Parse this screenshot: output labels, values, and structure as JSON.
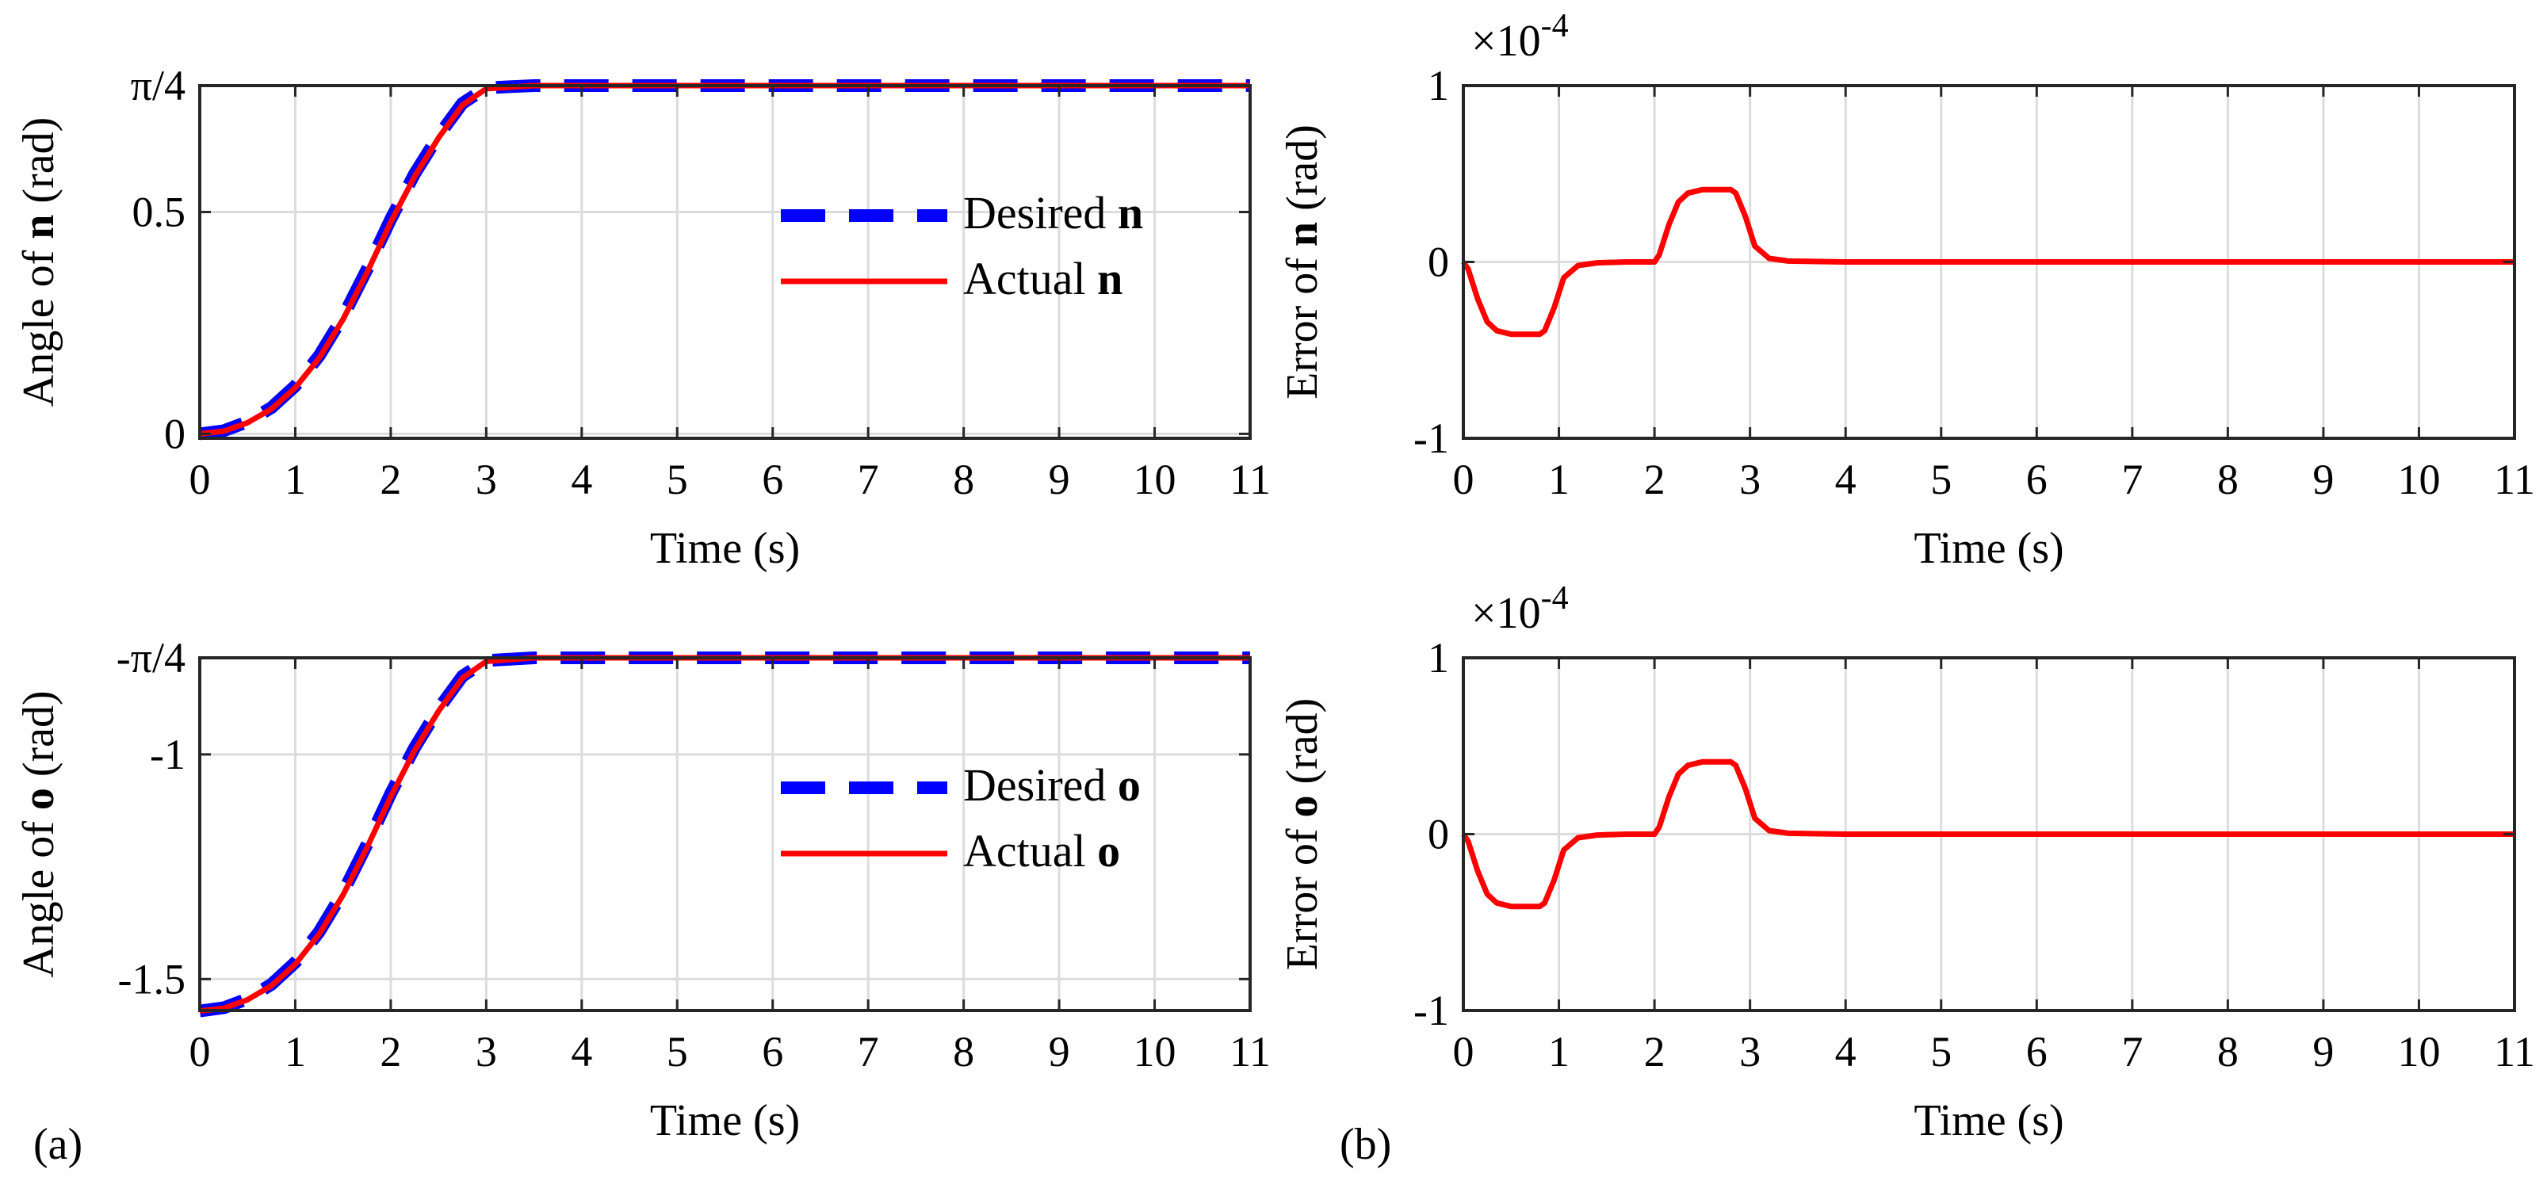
{
  "figure": {
    "label_a": "(a)",
    "label_b": "(b)"
  },
  "chart_data": [
    {
      "id": "n-angle",
      "type": "line",
      "xlabel": "Time (s)",
      "ylabel": {
        "prefix": "Angle of",
        "symbol": "n",
        "suffix": "(rad)"
      },
      "xlim": [
        0,
        11
      ],
      "ylim": [
        -0.01,
        0.785
      ],
      "xticks": [
        0,
        1,
        2,
        3,
        4,
        5,
        6,
        7,
        8,
        9,
        10,
        11
      ],
      "yticks": [
        {
          "value": 0,
          "label": "0"
        },
        {
          "value": 0.5,
          "label": "0.5"
        },
        {
          "value": 0.785,
          "label": "π/4"
        }
      ],
      "grid": true,
      "legend_position": "center-right",
      "series": [
        {
          "name": "Desired",
          "symbol": "n",
          "color": "#0000ff",
          "dash": "dashed",
          "x": [
            0,
            0.25,
            0.5,
            0.75,
            1.0,
            1.25,
            1.5,
            1.75,
            2.0,
            2.25,
            2.5,
            2.75,
            3.0,
            3.5,
            4,
            5,
            6,
            7,
            8,
            9,
            10,
            11
          ],
          "y": [
            0,
            0.007,
            0.027,
            0.059,
            0.108,
            0.176,
            0.264,
            0.37,
            0.484,
            0.586,
            0.672,
            0.745,
            0.78,
            0.785,
            0.785,
            0.785,
            0.785,
            0.785,
            0.785,
            0.785,
            0.785,
            0.785
          ]
        },
        {
          "name": "Actual",
          "symbol": "n",
          "color": "#ff0000",
          "dash": "solid",
          "x": [
            0,
            0.25,
            0.5,
            0.75,
            1.0,
            1.25,
            1.5,
            1.75,
            2.0,
            2.25,
            2.5,
            2.75,
            3.0,
            3.5,
            4,
            5,
            6,
            7,
            8,
            9,
            10,
            11
          ],
          "y": [
            0,
            0.006,
            0.025,
            0.056,
            0.104,
            0.171,
            0.258,
            0.363,
            0.477,
            0.58,
            0.667,
            0.741,
            0.778,
            0.785,
            0.785,
            0.785,
            0.785,
            0.785,
            0.785,
            0.785,
            0.785,
            0.785
          ]
        }
      ]
    },
    {
      "id": "n-error",
      "type": "line",
      "xlabel": "Time (s)",
      "ylabel": {
        "prefix": "Error of",
        "symbol": "n",
        "suffix": "(rad)"
      },
      "exponent": {
        "base": "×10",
        "power": "-4"
      },
      "xlim": [
        0,
        11
      ],
      "ylim": [
        -1,
        1
      ],
      "xticks": [
        0,
        1,
        2,
        3,
        4,
        5,
        6,
        7,
        8,
        9,
        10,
        11
      ],
      "yticks": [
        {
          "value": -1,
          "label": "-1"
        },
        {
          "value": 0,
          "label": "0"
        },
        {
          "value": 1,
          "label": "1"
        }
      ],
      "grid": true,
      "series": [
        {
          "name": "Error",
          "color": "#ff0000",
          "dash": "solid",
          "x": [
            0,
            0.05,
            0.15,
            0.25,
            0.35,
            0.5,
            0.65,
            0.8,
            0.85,
            0.95,
            1.05,
            1.2,
            1.4,
            1.7,
            2.0,
            2.05,
            2.15,
            2.25,
            2.35,
            2.5,
            2.65,
            2.8,
            2.85,
            2.95,
            3.05,
            3.2,
            3.4,
            4,
            5,
            6,
            7,
            8,
            9,
            10,
            11
          ],
          "y": [
            0,
            -0.04,
            -0.21,
            -0.34,
            -0.39,
            -0.41,
            -0.41,
            -0.41,
            -0.39,
            -0.26,
            -0.09,
            -0.02,
            -0.005,
            0,
            0,
            0.04,
            0.21,
            0.34,
            0.39,
            0.41,
            0.41,
            0.41,
            0.39,
            0.26,
            0.09,
            0.02,
            0.005,
            0,
            0,
            0,
            0,
            0,
            0,
            0,
            0
          ]
        }
      ]
    },
    {
      "id": "o-angle",
      "type": "line",
      "xlabel": "Time (s)",
      "ylabel": {
        "prefix": "Angle of",
        "symbol": "o",
        "suffix": "(rad)"
      },
      "xlim": [
        0,
        11
      ],
      "ylim": [
        -1.57,
        -0.785
      ],
      "xticks": [
        0,
        1,
        2,
        3,
        4,
        5,
        6,
        7,
        8,
        9,
        10,
        11
      ],
      "yticks": [
        {
          "value": -1.5,
          "label": "-1.5"
        },
        {
          "value": -1,
          "label": "-1"
        },
        {
          "value": -0.785,
          "label": "-π/4"
        }
      ],
      "grid": true,
      "legend_position": "center-right",
      "series": [
        {
          "name": "Desired",
          "symbol": "o",
          "color": "#0000ff",
          "dash": "dashed",
          "x": [
            0,
            0.25,
            0.5,
            0.75,
            1.0,
            1.25,
            1.5,
            1.75,
            2.0,
            2.25,
            2.5,
            2.75,
            3.0,
            3.5,
            4,
            5,
            6,
            7,
            8,
            9,
            10,
            11
          ],
          "y": [
            -1.571,
            -1.564,
            -1.544,
            -1.512,
            -1.463,
            -1.395,
            -1.307,
            -1.201,
            -1.087,
            -0.985,
            -0.899,
            -0.826,
            -0.791,
            -0.785,
            -0.785,
            -0.785,
            -0.785,
            -0.785,
            -0.785,
            -0.785,
            -0.785,
            -0.785
          ]
        },
        {
          "name": "Actual",
          "symbol": "o",
          "color": "#ff0000",
          "dash": "solid",
          "x": [
            0,
            0.25,
            0.5,
            0.75,
            1.0,
            1.25,
            1.5,
            1.75,
            2.0,
            2.25,
            2.5,
            2.75,
            3.0,
            3.5,
            4,
            5,
            6,
            7,
            8,
            9,
            10,
            11
          ],
          "y": [
            -1.571,
            -1.565,
            -1.546,
            -1.515,
            -1.467,
            -1.4,
            -1.313,
            -1.208,
            -1.094,
            -0.991,
            -0.904,
            -0.83,
            -0.793,
            -0.785,
            -0.785,
            -0.785,
            -0.785,
            -0.785,
            -0.785,
            -0.785,
            -0.785,
            -0.785
          ]
        }
      ]
    },
    {
      "id": "o-error",
      "type": "line",
      "xlabel": "Time (s)",
      "ylabel": {
        "prefix": "Error of",
        "symbol": "o",
        "suffix": "(rad)"
      },
      "exponent": {
        "base": "×10",
        "power": "-4"
      },
      "xlim": [
        0,
        11
      ],
      "ylim": [
        -1,
        1
      ],
      "xticks": [
        0,
        1,
        2,
        3,
        4,
        5,
        6,
        7,
        8,
        9,
        10,
        11
      ],
      "yticks": [
        {
          "value": -1,
          "label": "-1"
        },
        {
          "value": 0,
          "label": "0"
        },
        {
          "value": 1,
          "label": "1"
        }
      ],
      "grid": true,
      "series": [
        {
          "name": "Error",
          "color": "#ff0000",
          "dash": "solid",
          "x": [
            0,
            0.05,
            0.15,
            0.25,
            0.35,
            0.5,
            0.65,
            0.8,
            0.85,
            0.95,
            1.05,
            1.2,
            1.4,
            1.7,
            2.0,
            2.05,
            2.15,
            2.25,
            2.35,
            2.5,
            2.65,
            2.8,
            2.85,
            2.95,
            3.05,
            3.2,
            3.4,
            4,
            5,
            6,
            7,
            8,
            9,
            10,
            11
          ],
          "y": [
            0,
            -0.04,
            -0.21,
            -0.34,
            -0.39,
            -0.41,
            -0.41,
            -0.41,
            -0.39,
            -0.26,
            -0.09,
            -0.02,
            -0.005,
            0,
            0,
            0.04,
            0.21,
            0.34,
            0.39,
            0.41,
            0.41,
            0.41,
            0.39,
            0.26,
            0.09,
            0.02,
            0.005,
            0,
            0,
            0,
            0,
            0,
            0,
            0,
            0
          ]
        }
      ]
    }
  ]
}
